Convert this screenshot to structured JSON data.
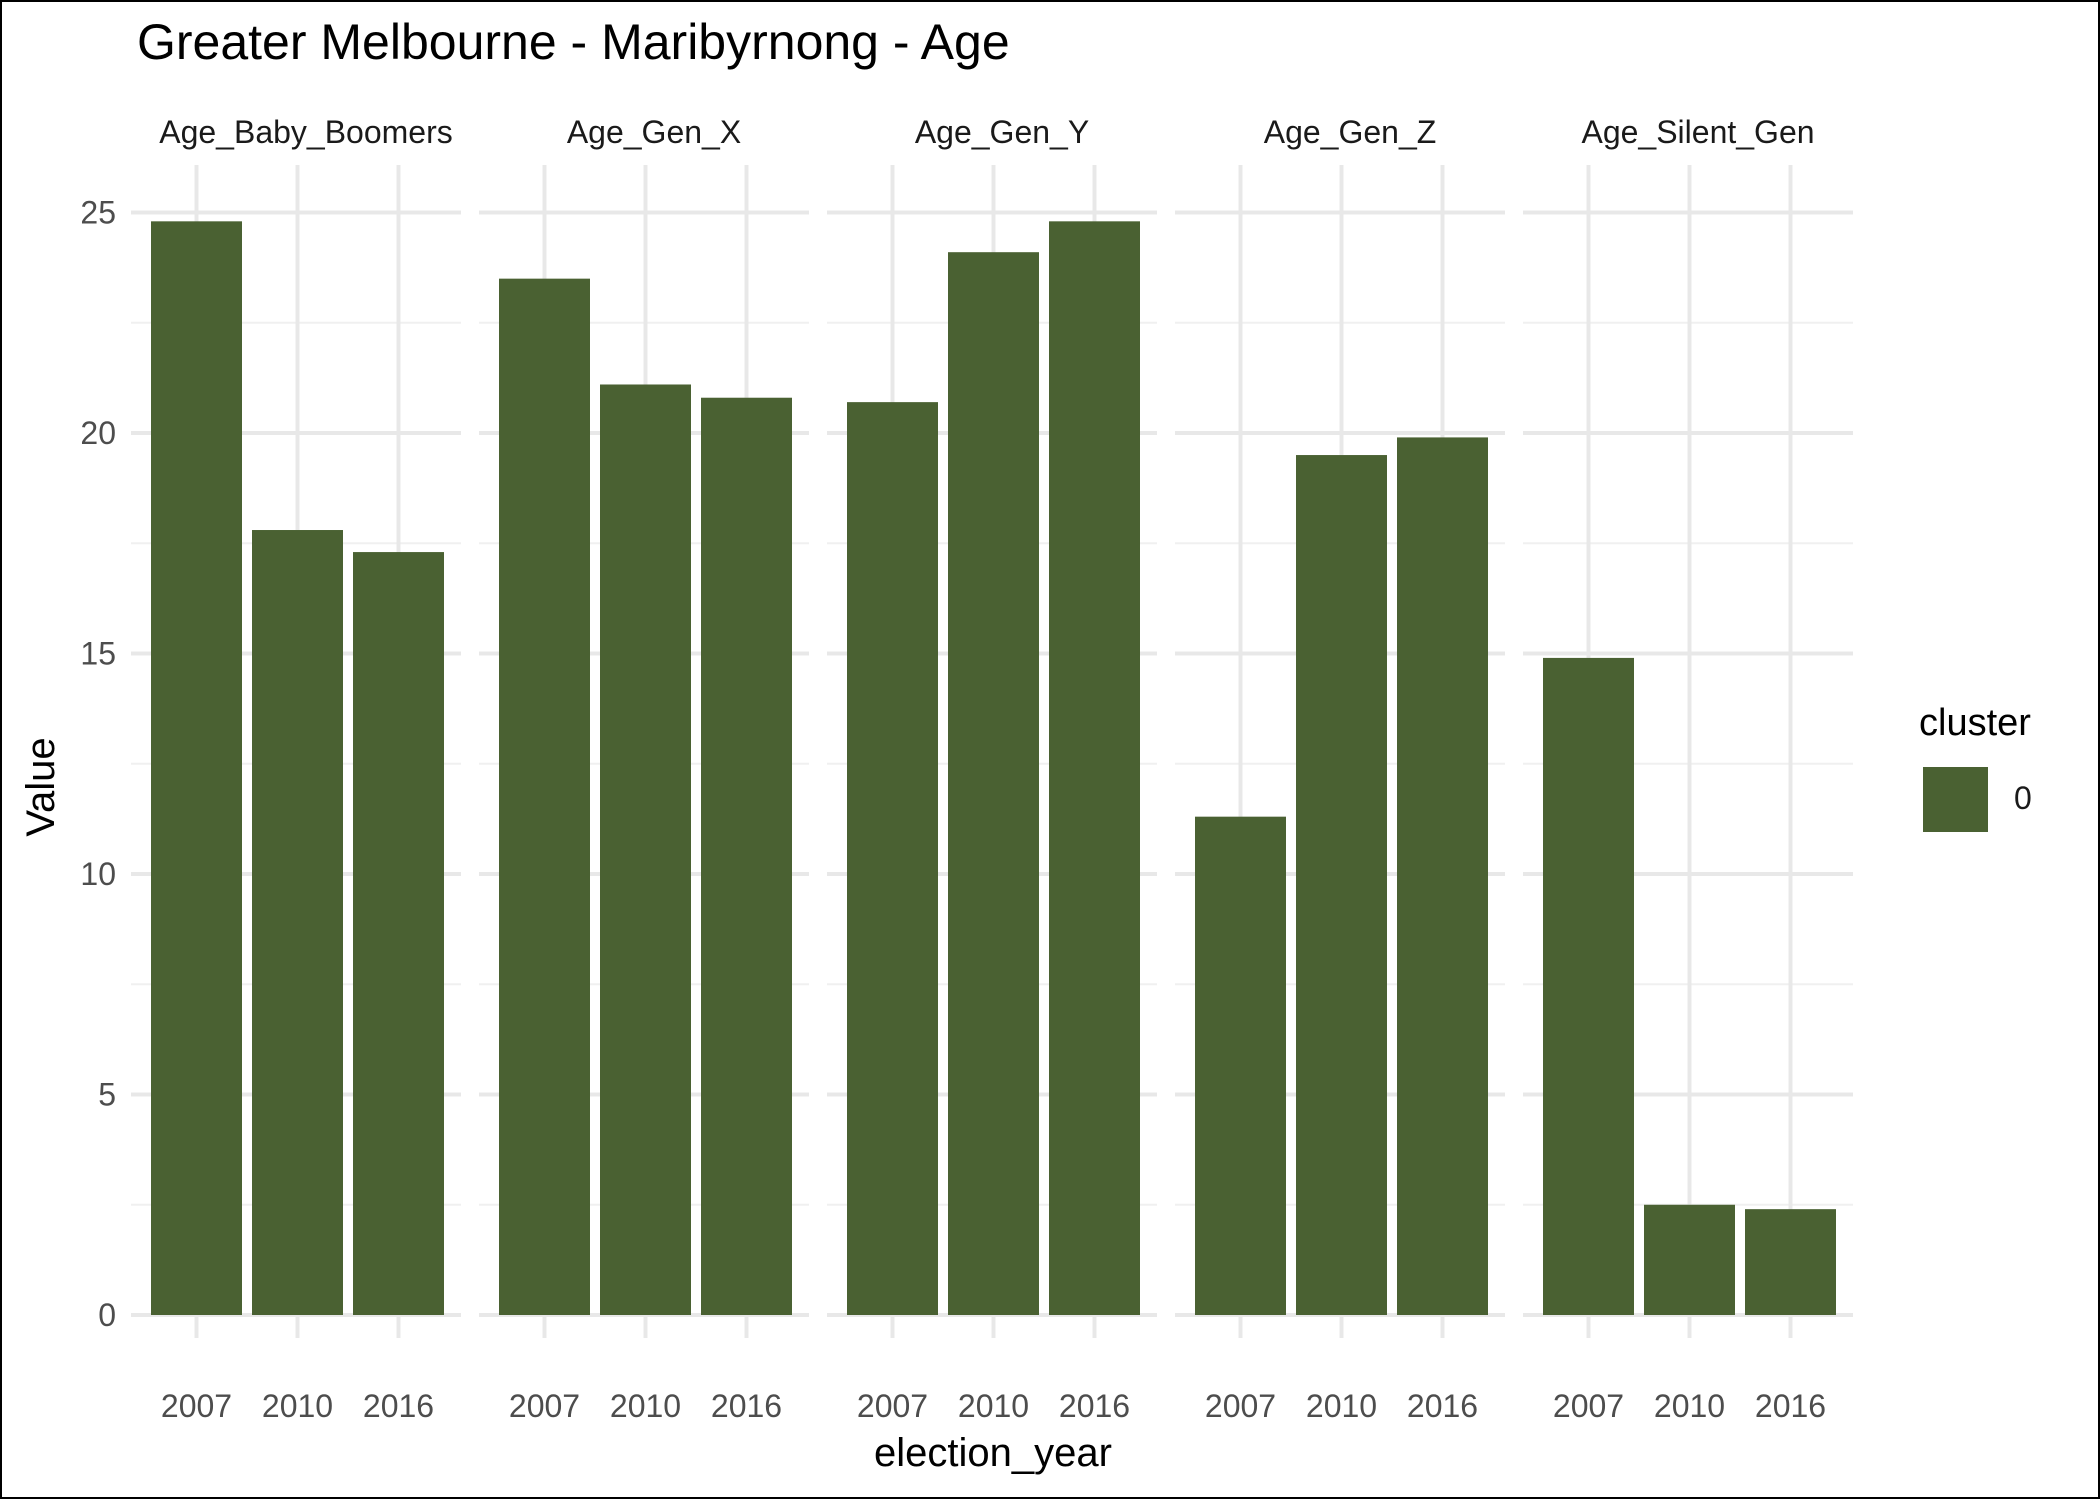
{
  "chart_data": {
    "type": "bar",
    "title": "Greater Melbourne - Maribyrnong - Age",
    "xlabel": "election_year",
    "ylabel": "Value",
    "ylim": [
      0,
      26
    ],
    "yticks": [
      0,
      5,
      10,
      15,
      20,
      25
    ],
    "grid": true,
    "facets": [
      {
        "name": "Age_Baby_Boomers",
        "categories": [
          "2007",
          "2010",
          "2016"
        ],
        "values": [
          24.8,
          17.8,
          17.3
        ]
      },
      {
        "name": "Age_Gen_X",
        "categories": [
          "2007",
          "2010",
          "2016"
        ],
        "values": [
          23.5,
          21.1,
          20.8
        ]
      },
      {
        "name": "Age_Gen_Y",
        "categories": [
          "2007",
          "2010",
          "2016"
        ],
        "values": [
          20.7,
          24.1,
          24.8
        ]
      },
      {
        "name": "Age_Gen_Z",
        "categories": [
          "2007",
          "2010",
          "2016"
        ],
        "values": [
          11.3,
          19.5,
          19.9
        ]
      },
      {
        "name": "Age_Silent_Gen",
        "categories": [
          "2007",
          "2010",
          "2016"
        ],
        "values": [
          14.9,
          2.5,
          2.4
        ]
      }
    ],
    "legend": {
      "title": "cluster",
      "placement": "right",
      "entries": [
        {
          "label": "0",
          "color": "#4a6132"
        }
      ]
    },
    "bar_color": "#4a6132"
  }
}
